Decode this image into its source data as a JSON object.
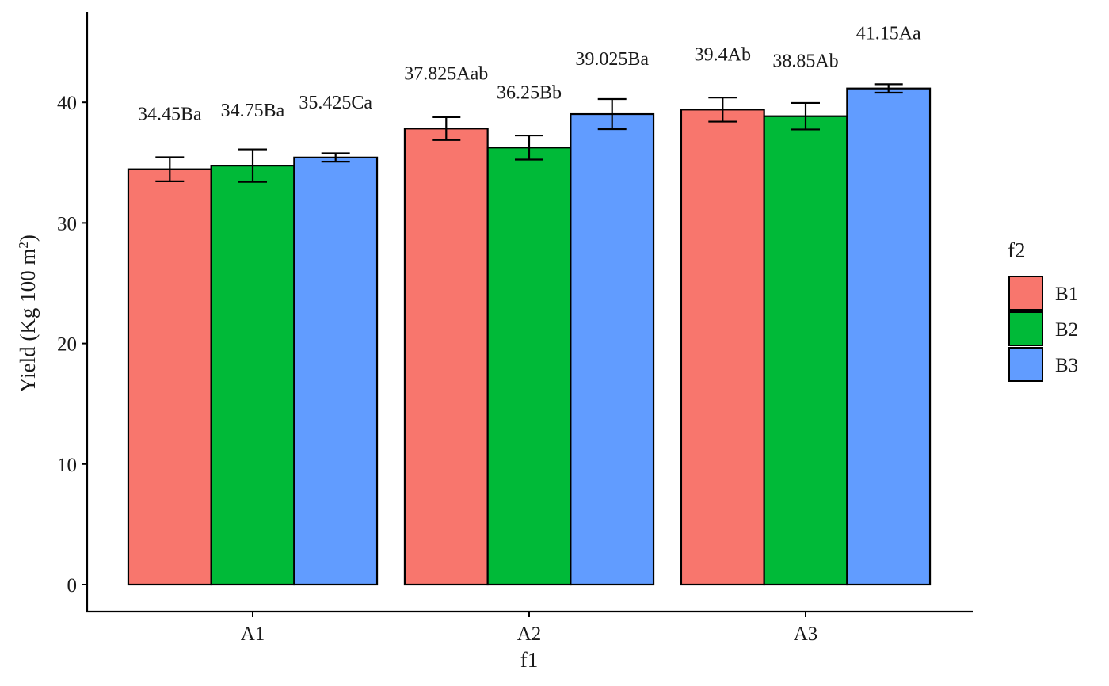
{
  "chart_data": {
    "type": "bar",
    "title": "",
    "xlabel": "f1",
    "ylabel_main": "Yield (Kg 100 m",
    "ylabel_sup": "2",
    "ylabel_end": ")",
    "ylim": [
      0,
      48
    ],
    "yticks": [
      0,
      10,
      20,
      30,
      40
    ],
    "categories": [
      "A1",
      "A2",
      "A3"
    ],
    "legend_title": "f2",
    "legend_position": "right",
    "series": [
      {
        "name": "B1",
        "color": "#F8766D",
        "values": [
          34.45,
          37.825,
          39.4
        ],
        "errors": [
          1.0,
          0.95,
          1.0
        ],
        "labels": [
          "34.45Ba",
          "37.825Aab",
          "39.4Ab"
        ]
      },
      {
        "name": "B2",
        "color": "#00BA38",
        "values": [
          34.75,
          36.25,
          38.85
        ],
        "errors": [
          1.35,
          1.0,
          1.1
        ],
        "labels": [
          "34.75Ba",
          "36.25Bb",
          "38.85Ab"
        ]
      },
      {
        "name": "B3",
        "color": "#619CFF",
        "values": [
          35.425,
          39.025,
          41.15
        ],
        "errors": [
          0.35,
          1.25,
          0.35
        ],
        "labels": [
          "35.425Ca",
          "39.025Ba",
          "41.15Aa"
        ]
      }
    ]
  }
}
